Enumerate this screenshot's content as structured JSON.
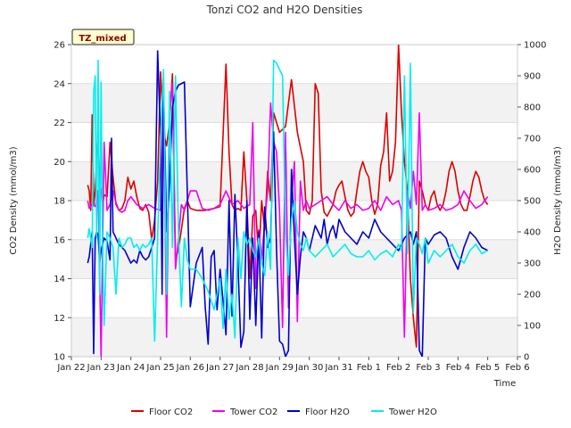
{
  "chart_data": {
    "type": "line",
    "title": "Tonzi CO2 and H2O Densities",
    "badge": "TZ_mixed",
    "xlabel": "Time",
    "ylabel_left": "CO2 Density (mmol/m3)",
    "ylabel_right": "H2O Density (mmol/m3)",
    "x_ticks": [
      "Jan 22",
      "Jan 23",
      "Jan 24",
      "Jan 25",
      "Jan 26",
      "Jan 27",
      "Jan 28",
      "Jan 29",
      "Jan 30",
      "Jan 31",
      "Feb 1",
      "Feb 2",
      "Feb 3",
      "Feb 4",
      "Feb 5",
      "Feb 6"
    ],
    "xlim_days": [
      0,
      15
    ],
    "ylim_left": [
      10,
      26
    ],
    "yticks_left": [
      10,
      12,
      14,
      16,
      18,
      20,
      22,
      24,
      26
    ],
    "ylim_right": [
      0,
      1000
    ],
    "yticks_right": [
      0,
      100,
      200,
      300,
      400,
      500,
      600,
      700,
      800,
      900,
      1000
    ],
    "grid": "horizontal bands",
    "legend_position": "bottom",
    "series": [
      {
        "name": "Floor CO2",
        "axis": "left",
        "color": "#dd0000",
        "x": [
          0.55,
          0.6,
          0.65,
          0.7,
          0.75,
          0.8,
          0.85,
          0.9,
          0.95,
          1.0,
          1.05,
          1.1,
          1.2,
          1.3,
          1.4,
          1.5,
          1.6,
          1.7,
          1.8,
          1.9,
          2.0,
          2.1,
          2.2,
          2.3,
          2.4,
          2.5,
          2.6,
          2.7,
          2.8,
          2.9,
          3.0,
          3.1,
          3.2,
          3.3,
          3.4,
          3.5,
          3.6,
          3.7,
          3.8,
          3.9,
          4.0,
          4.2,
          4.5,
          4.8,
          5.0,
          5.2,
          5.3,
          5.4,
          5.5,
          5.6,
          5.7,
          5.8,
          5.9,
          6.0,
          6.1,
          6.2,
          6.3,
          6.4,
          6.5,
          6.6,
          6.7,
          6.8,
          6.9,
          7.0,
          7.2,
          7.4,
          7.6,
          7.8,
          7.9,
          8.0,
          8.1,
          8.2,
          8.3,
          8.4,
          8.5,
          8.6,
          8.7,
          8.8,
          8.9,
          9.0,
          9.1,
          9.2,
          9.3,
          9.4,
          9.5,
          9.6,
          9.7,
          9.8,
          9.9,
          10.0,
          10.1,
          10.2,
          10.3,
          10.4,
          10.5,
          10.6,
          10.7,
          10.8,
          10.9,
          11.0,
          11.1,
          11.2,
          11.3,
          11.4,
          11.5,
          11.6,
          11.7,
          11.8,
          11.9,
          12.0,
          12.1,
          12.2,
          12.3,
          12.4,
          12.5,
          12.6,
          12.7,
          12.8,
          12.9,
          13.0,
          13.1,
          13.2,
          13.3,
          13.4,
          13.5,
          13.6,
          13.7,
          13.8,
          13.9,
          14.0
        ],
        "y": [
          18.8,
          18.5,
          17.5,
          22.4,
          17.8,
          18.5,
          20.0,
          21.8,
          18.4,
          18.6,
          17.8,
          18.3,
          18.2,
          21.0,
          19.2,
          17.8,
          17.5,
          17.6,
          18.0,
          19.2,
          18.6,
          19.0,
          18.2,
          17.6,
          17.5,
          17.8,
          17.4,
          16.0,
          17.0,
          19.0,
          24.6,
          21.5,
          20.8,
          22.0,
          24.5,
          15.0,
          15.5,
          16.5,
          17.6,
          18.0,
          17.6,
          17.5,
          17.5,
          17.6,
          17.7,
          25.0,
          20.5,
          17.8,
          17.5,
          17.6,
          17.5,
          20.5,
          18.0,
          14.0,
          17.2,
          17.5,
          15.0,
          18.0,
          16.5,
          19.5,
          18.0,
          22.5,
          22.0,
          21.5,
          21.8,
          24.2,
          21.5,
          20.0,
          17.5,
          17.3,
          18.0,
          24.0,
          23.5,
          18.5,
          17.4,
          17.2,
          17.5,
          17.8,
          18.5,
          18.8,
          19.0,
          18.2,
          17.5,
          17.2,
          17.4,
          18.5,
          19.5,
          20.0,
          19.5,
          19.2,
          18.0,
          17.3,
          17.8,
          19.8,
          20.5,
          22.5,
          19.0,
          19.5,
          21.0,
          26.0,
          22.5,
          20.0,
          18.5,
          14.0,
          12.0,
          10.5,
          19.0,
          18.5,
          17.8,
          17.5,
          18.2,
          18.5,
          17.8,
          17.5,
          17.8,
          18.5,
          19.5,
          20.0,
          19.5,
          18.5,
          17.8,
          17.5,
          17.5,
          18.2,
          19.0,
          19.5,
          19.2,
          18.5,
          18.0,
          17.8
        ]
      },
      {
        "name": "Tower CO2",
        "axis": "left",
        "color": "#ee00ee",
        "x": [
          0.55,
          0.6,
          0.7,
          0.8,
          0.9,
          1.0,
          1.1,
          1.2,
          1.3,
          1.4,
          1.5,
          1.6,
          1.7,
          1.8,
          1.9,
          2.0,
          2.2,
          2.4,
          2.6,
          2.8,
          3.0,
          3.1,
          3.2,
          3.3,
          3.4,
          3.5,
          3.6,
          3.7,
          3.8,
          3.9,
          4.0,
          4.2,
          4.4,
          4.6,
          4.8,
          5.0,
          5.2,
          5.4,
          5.6,
          5.8,
          6.0,
          6.1,
          6.2,
          6.3,
          6.4,
          6.5,
          6.6,
          6.7,
          6.8,
          6.9,
          7.0,
          7.1,
          7.2,
          7.3,
          7.4,
          7.5,
          7.6,
          7.7,
          7.8,
          7.9,
          8.0,
          8.2,
          8.4,
          8.6,
          8.8,
          9.0,
          9.2,
          9.4,
          9.6,
          9.8,
          10.0,
          10.2,
          10.4,
          10.6,
          10.8,
          11.0,
          11.1,
          11.2,
          11.3,
          11.4,
          11.5,
          11.6,
          11.7,
          11.8,
          11.9,
          12.0,
          12.2,
          12.4,
          12.6,
          12.8,
          13.0,
          13.2,
          13.4,
          13.6,
          13.8,
          14.0
        ],
        "y": [
          18.0,
          17.6,
          17.8,
          17.7,
          18.5,
          10.0,
          21.0,
          17.5,
          17.8,
          18.5,
          17.9,
          17.5,
          17.4,
          17.5,
          18.0,
          18.2,
          17.8,
          17.6,
          17.8,
          17.6,
          17.5,
          24.0,
          11.0,
          22.5,
          24.0,
          14.5,
          16.0,
          17.8,
          17.5,
          18.0,
          18.5,
          18.5,
          17.6,
          17.5,
          17.6,
          17.8,
          18.5,
          17.8,
          18.0,
          17.6,
          17.8,
          22.0,
          13.5,
          16.5,
          15.0,
          17.0,
          18.5,
          23.0,
          21.0,
          20.5,
          17.5,
          11.5,
          21.5,
          12.5,
          18.0,
          20.0,
          11.8,
          19.0,
          17.5,
          18.0,
          17.6,
          17.8,
          18.0,
          18.2,
          17.8,
          17.5,
          18.0,
          17.6,
          17.8,
          17.5,
          17.6,
          18.0,
          17.5,
          18.2,
          17.8,
          18.0,
          17.5,
          11.0,
          18.5,
          17.6,
          19.5,
          17.8,
          22.5,
          17.5,
          17.8,
          17.5,
          17.6,
          17.8,
          17.5,
          17.6,
          17.8,
          18.5,
          18.0,
          17.6,
          17.8,
          18.2
        ]
      },
      {
        "name": "Floor H2O",
        "axis": "right",
        "color": "#0000cc",
        "x": [
          0.55,
          0.6,
          0.7,
          0.75,
          0.8,
          0.85,
          0.9,
          0.95,
          1.0,
          1.1,
          1.2,
          1.3,
          1.35,
          1.4,
          1.5,
          1.6,
          1.7,
          1.8,
          1.9,
          2.0,
          2.1,
          2.2,
          2.3,
          2.4,
          2.5,
          2.6,
          2.7,
          2.8,
          2.9,
          3.0,
          3.05,
          3.1,
          3.15,
          3.2,
          3.3,
          3.4,
          3.5,
          3.6,
          3.8,
          4.0,
          4.2,
          4.4,
          4.5,
          4.6,
          4.7,
          4.8,
          4.9,
          5.0,
          5.1,
          5.2,
          5.3,
          5.4,
          5.5,
          5.6,
          5.7,
          5.8,
          5.9,
          6.0,
          6.1,
          6.2,
          6.3,
          6.4,
          6.5,
          6.6,
          6.7,
          6.8,
          6.9,
          7.0,
          7.1,
          7.2,
          7.3,
          7.4,
          7.5,
          7.6,
          7.7,
          7.8,
          7.9,
          8.0,
          8.1,
          8.2,
          8.3,
          8.4,
          8.5,
          8.6,
          8.7,
          8.8,
          8.9,
          9.0,
          9.2,
          9.4,
          9.6,
          9.8,
          10.0,
          10.2,
          10.4,
          10.6,
          10.8,
          11.0,
          11.2,
          11.4,
          11.5,
          11.6,
          11.7,
          11.8,
          11.9,
          12.0,
          12.2,
          12.4,
          12.6,
          12.8,
          13.0,
          13.2,
          13.4,
          13.6,
          13.8,
          14.0
        ],
        "y": [
          300,
          320,
          400,
          10,
          380,
          400,
          390,
          300,
          340,
          380,
          370,
          310,
          700,
          400,
          380,
          360,
          350,
          340,
          320,
          300,
          310,
          300,
          340,
          320,
          310,
          320,
          350,
          380,
          980,
          700,
          200,
          850,
          650,
          400,
          550,
          800,
          850,
          870,
          880,
          160,
          300,
          350,
          160,
          40,
          320,
          340,
          150,
          280,
          180,
          70,
          500,
          130,
          520,
          300,
          30,
          80,
          500,
          120,
          380,
          100,
          400,
          60,
          480,
          350,
          380,
          720,
          340,
          50,
          40,
          0,
          20,
          600,
          380,
          200,
          320,
          400,
          380,
          340,
          380,
          420,
          400,
          380,
          440,
          360,
          400,
          420,
          380,
          440,
          400,
          380,
          360,
          400,
          380,
          440,
          400,
          380,
          360,
          340,
          380,
          400,
          360,
          400,
          20,
          0,
          380,
          360,
          390,
          400,
          380,
          320,
          280,
          350,
          400,
          380,
          350,
          340
        ]
      },
      {
        "name": "Tower H2O",
        "axis": "right",
        "color": "#00eeee",
        "x": [
          0.55,
          0.6,
          0.7,
          0.75,
          0.8,
          0.85,
          0.9,
          0.95,
          1.0,
          1.05,
          1.1,
          1.2,
          1.3,
          1.4,
          1.5,
          1.6,
          1.7,
          1.8,
          1.9,
          2.0,
          2.1,
          2.2,
          2.3,
          2.4,
          2.5,
          2.6,
          2.7,
          2.8,
          2.9,
          3.0,
          3.1,
          3.2,
          3.3,
          3.4,
          3.5,
          3.6,
          3.7,
          3.8,
          3.9,
          4.0,
          4.2,
          4.4,
          4.6,
          4.8,
          5.0,
          5.1,
          5.2,
          5.3,
          5.4,
          5.5,
          5.6,
          5.7,
          5.8,
          5.9,
          6.0,
          6.1,
          6.2,
          6.3,
          6.4,
          6.5,
          6.6,
          6.7,
          6.8,
          6.9,
          7.0,
          7.1,
          7.2,
          7.3,
          7.4,
          7.5,
          7.6,
          7.7,
          7.8,
          7.9,
          8.0,
          8.2,
          8.4,
          8.6,
          8.8,
          9.0,
          9.2,
          9.4,
          9.6,
          9.8,
          10.0,
          10.2,
          10.4,
          10.6,
          10.8,
          11.0,
          11.1,
          11.2,
          11.3,
          11.4,
          11.5,
          11.6,
          11.7,
          11.8,
          11.9,
          12.0,
          12.2,
          12.4,
          12.6,
          12.8,
          13.0,
          13.2,
          13.4,
          13.6,
          13.8,
          14.0
        ],
        "y": [
          380,
          410,
          350,
          850,
          900,
          380,
          950,
          200,
          880,
          350,
          100,
          400,
          380,
          350,
          200,
          380,
          350,
          360,
          380,
          380,
          350,
          360,
          340,
          360,
          350,
          360,
          380,
          50,
          380,
          700,
          920,
          200,
          850,
          350,
          900,
          400,
          160,
          380,
          310,
          280,
          280,
          250,
          210,
          150,
          250,
          90,
          280,
          120,
          200,
          60,
          380,
          250,
          400,
          360,
          380,
          340,
          320,
          380,
          300,
          260,
          400,
          280,
          950,
          940,
          920,
          900,
          400,
          260,
          440,
          500,
          400,
          360,
          340,
          380,
          340,
          320,
          340,
          360,
          320,
          340,
          360,
          330,
          320,
          320,
          340,
          310,
          330,
          340,
          320,
          360,
          340,
          900,
          330,
          940,
          140,
          380,
          360,
          330,
          380,
          300,
          340,
          320,
          340,
          360,
          320,
          300,
          340,
          360,
          330,
          340
        ]
      }
    ]
  }
}
